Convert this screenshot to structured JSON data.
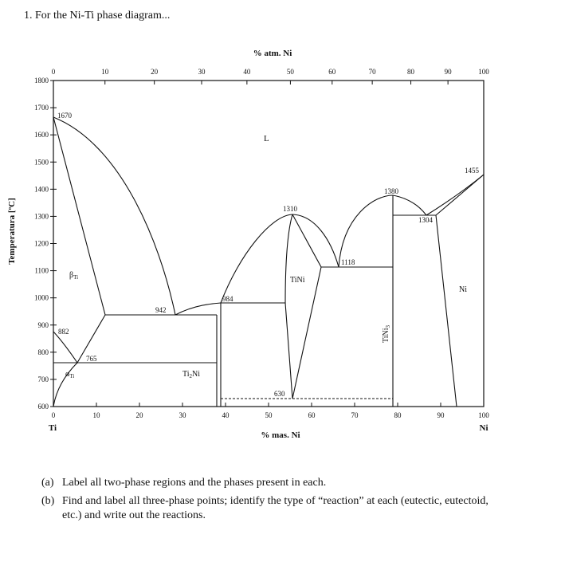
{
  "header": {
    "title": "1. For the Ni-Ti phase diagram..."
  },
  "diagram": {
    "top_axis_label": "% atm. Ni",
    "bottom_axis_label": "% mas. Ni",
    "y_axis_label": "Temperatura [ºC]",
    "left_end_label": "Ti",
    "right_end_label": "Ni",
    "top_ticks": [
      0,
      10,
      20,
      30,
      40,
      50,
      60,
      70,
      80,
      90,
      100
    ],
    "bottom_ticks": [
      0,
      10,
      20,
      30,
      40,
      50,
      60,
      70,
      80,
      90,
      100
    ],
    "y_ticks": [
      600,
      700,
      800,
      900,
      1000,
      1100,
      1200,
      1300,
      1400,
      1500,
      1600,
      1700,
      1800
    ],
    "labels": {
      "t1670": "1670",
      "liquid": "L",
      "t1455": "1455",
      "t1380": "1380",
      "t1310": "1310",
      "t1304": "1304",
      "t1118": "1118",
      "tini": "TiNi",
      "ni": "Ni",
      "t942": "942",
      "t984": "984",
      "t882": "882",
      "t765": "765",
      "t630": "630",
      "beta": {
        "symbol": "β",
        "sub": "Ti"
      },
      "alpha": {
        "symbol": "α",
        "sub": "Ti"
      },
      "ti2ni": {
        "a": "Ti",
        "sub": "2",
        "b": "Ni"
      },
      "tini3": {
        "a": "TiNi",
        "sub": "3"
      }
    }
  },
  "questions": [
    {
      "label": "(a)",
      "text": "Label all two-phase regions and the phases present in each."
    },
    {
      "label": "(b)",
      "text": "Find and label all three-phase points; identify the type of “reaction” at each (eutectic, eutectoid, etc.) and write out the reactions."
    }
  ]
}
